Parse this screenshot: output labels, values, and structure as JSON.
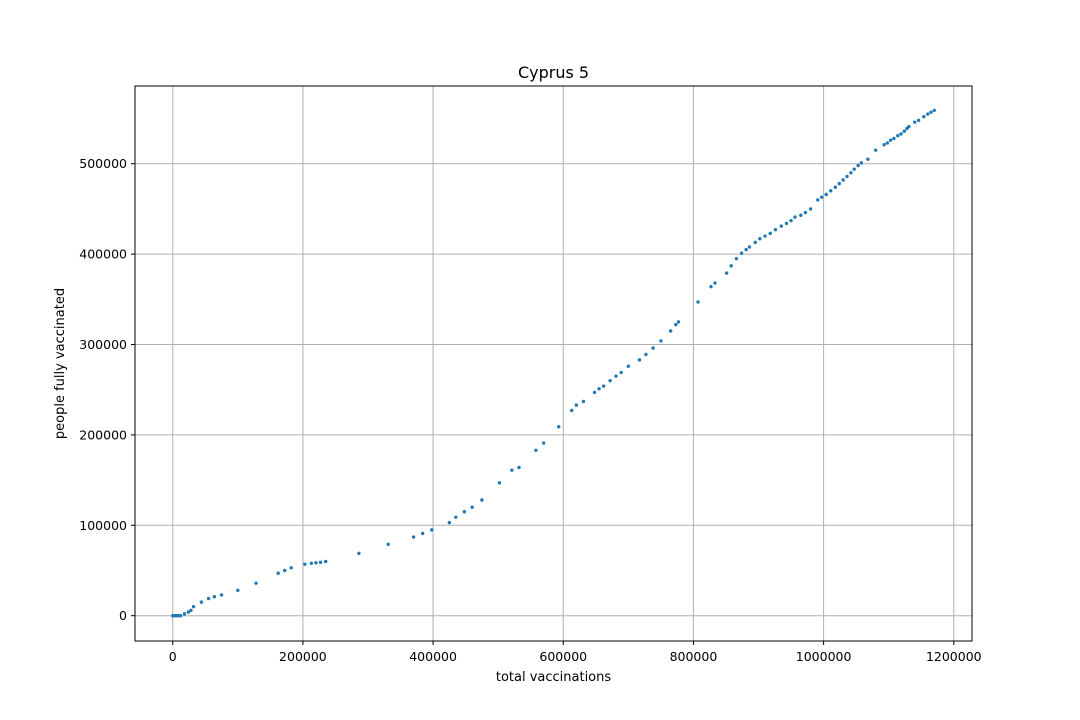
{
  "chart_data": {
    "type": "scatter",
    "title": "Cyprus 5",
    "xlabel": "total vaccinations",
    "ylabel": "people fully vaccinated",
    "xlim": [
      -58000,
      1228000
    ],
    "ylim": [
      -28000,
      586000
    ],
    "xticks": [
      0,
      200000,
      400000,
      600000,
      800000,
      1000000,
      1200000
    ],
    "yticks": [
      0,
      100000,
      200000,
      300000,
      400000,
      500000
    ],
    "grid": true,
    "color": "#1f77b4",
    "series": [
      {
        "points": [
          [
            0,
            0
          ],
          [
            3000,
            0
          ],
          [
            6000,
            0
          ],
          [
            9000,
            0
          ],
          [
            12000,
            0
          ],
          [
            18000,
            2000
          ],
          [
            24000,
            4000
          ],
          [
            28000,
            6000
          ],
          [
            32000,
            10000
          ],
          [
            44000,
            15000
          ],
          [
            55000,
            19000
          ],
          [
            64000,
            21000
          ],
          [
            75000,
            23000
          ],
          [
            100000,
            28000
          ],
          [
            128000,
            36000
          ],
          [
            162000,
            47000
          ],
          [
            172000,
            50000
          ],
          [
            182000,
            53000
          ],
          [
            203000,
            57000
          ],
          [
            213000,
            58000
          ],
          [
            220000,
            58500
          ],
          [
            227000,
            59000
          ],
          [
            235000,
            60000
          ],
          [
            286000,
            69000
          ],
          [
            331000,
            79000
          ],
          [
            370000,
            87000
          ],
          [
            384000,
            91000
          ],
          [
            398000,
            95000
          ],
          [
            425000,
            103000
          ],
          [
            435000,
            109000
          ],
          [
            448000,
            115000
          ],
          [
            460000,
            120000
          ],
          [
            475000,
            128000
          ],
          [
            502000,
            147000
          ],
          [
            521000,
            161000
          ],
          [
            532000,
            164000
          ],
          [
            558000,
            183000
          ],
          [
            570000,
            191000
          ],
          [
            593000,
            209000
          ],
          [
            613000,
            227000
          ],
          [
            620000,
            233000
          ],
          [
            631000,
            237000
          ],
          [
            648000,
            247000
          ],
          [
            655000,
            251000
          ],
          [
            662000,
            254000
          ],
          [
            672000,
            260000
          ],
          [
            681000,
            265000
          ],
          [
            689000,
            269000
          ],
          [
            700000,
            276000
          ],
          [
            717000,
            283000
          ],
          [
            727000,
            289000
          ],
          [
            738000,
            296000
          ],
          [
            750000,
            304000
          ],
          [
            765000,
            315000
          ],
          [
            773000,
            322000
          ],
          [
            777000,
            325000
          ],
          [
            807000,
            347000
          ],
          [
            827000,
            364000
          ],
          [
            833000,
            368000
          ],
          [
            851000,
            379000
          ],
          [
            858000,
            387000
          ],
          [
            866000,
            395000
          ],
          [
            874000,
            401000
          ],
          [
            881000,
            405000
          ],
          [
            886000,
            408000
          ],
          [
            895000,
            413000
          ],
          [
            902000,
            417000
          ],
          [
            910000,
            420000
          ],
          [
            918000,
            423000
          ],
          [
            926000,
            427000
          ],
          [
            935000,
            431000
          ],
          [
            943000,
            434000
          ],
          [
            950000,
            437000
          ],
          [
            956000,
            441000
          ],
          [
            965000,
            443000
          ],
          [
            972000,
            446000
          ],
          [
            980000,
            450000
          ],
          [
            991000,
            460000
          ],
          [
            997000,
            463000
          ],
          [
            1004000,
            466000
          ],
          [
            1011000,
            470000
          ],
          [
            1018000,
            474000
          ],
          [
            1024000,
            478000
          ],
          [
            1030000,
            482000
          ],
          [
            1036000,
            486000
          ],
          [
            1042000,
            490000
          ],
          [
            1047000,
            494000
          ],
          [
            1053000,
            498000
          ],
          [
            1058000,
            501000
          ],
          [
            1068000,
            505000
          ],
          [
            1080000,
            515000
          ],
          [
            1093000,
            521000
          ],
          [
            1098000,
            523000
          ],
          [
            1103000,
            526000
          ],
          [
            1108000,
            528000
          ],
          [
            1114000,
            531000
          ],
          [
            1119000,
            533000
          ],
          [
            1124000,
            536000
          ],
          [
            1128000,
            539000
          ],
          [
            1131000,
            541000
          ],
          [
            1140000,
            546000
          ],
          [
            1146000,
            548000
          ],
          [
            1154000,
            552000
          ],
          [
            1160000,
            555000
          ],
          [
            1165000,
            557000
          ],
          [
            1170000,
            559000
          ]
        ]
      }
    ]
  }
}
